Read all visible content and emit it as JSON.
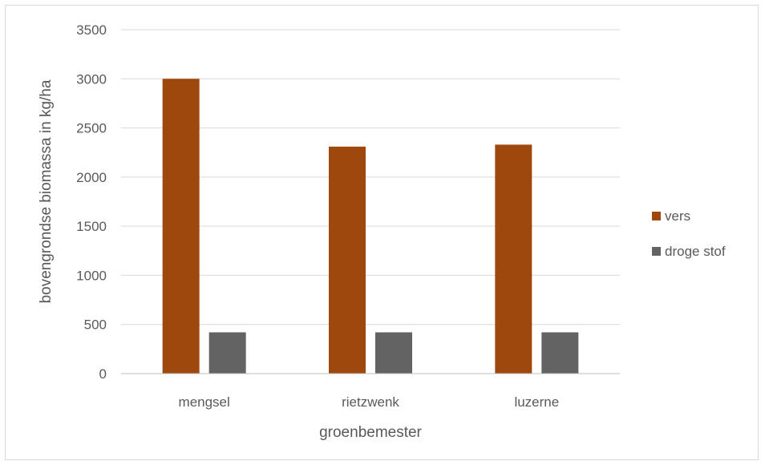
{
  "chart_data": {
    "type": "bar",
    "title": "",
    "xlabel": "groenbemester",
    "ylabel": "bovengrondse biomassa in kg/ha",
    "categories": [
      "mengsel",
      "rietzwenk",
      "luzerne"
    ],
    "series": [
      {
        "name": "vers",
        "values": [
          3000,
          2310,
          2330
        ],
        "color": "#9e480e"
      },
      {
        "name": "droge stof",
        "values": [
          420,
          420,
          420
        ],
        "color": "#636363"
      }
    ],
    "ylim": [
      0,
      3500
    ],
    "yticks": [
      0,
      500,
      1000,
      1500,
      2000,
      2500,
      3000,
      3500
    ],
    "grid": true,
    "legend_position": "right"
  }
}
